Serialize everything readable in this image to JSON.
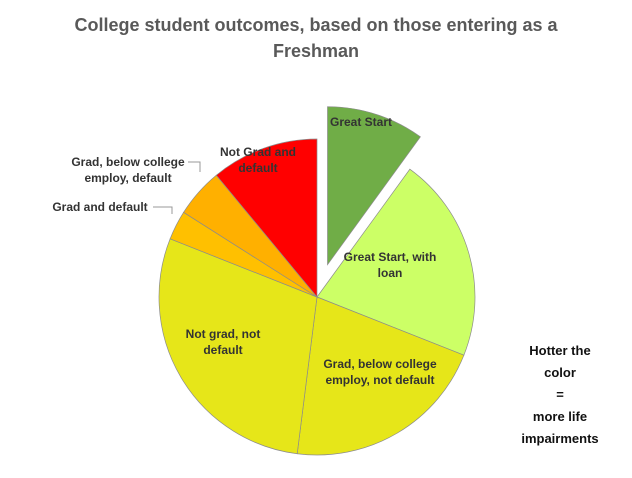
{
  "chart_data": {
    "type": "pie",
    "title": "College student outcomes, based on those entering as a Freshman",
    "categories": [
      "Great Start",
      "Great Start, with loan",
      "Grad, below college employ, not default",
      "Not grad, not default",
      "Grad and default",
      "Grad, below college employ, default",
      "Not Grad and default"
    ],
    "values": [
      10,
      21,
      21,
      29,
      3,
      5,
      11
    ],
    "colors": [
      "#70ad47",
      "#ccff66",
      "#e6e619",
      "#e6e619",
      "#ffc000",
      "#ffb000",
      "#ff0000"
    ],
    "exploded": [
      0
    ],
    "annotation": [
      "Hotter the",
      "color",
      "=",
      "more life",
      "impairments"
    ]
  }
}
